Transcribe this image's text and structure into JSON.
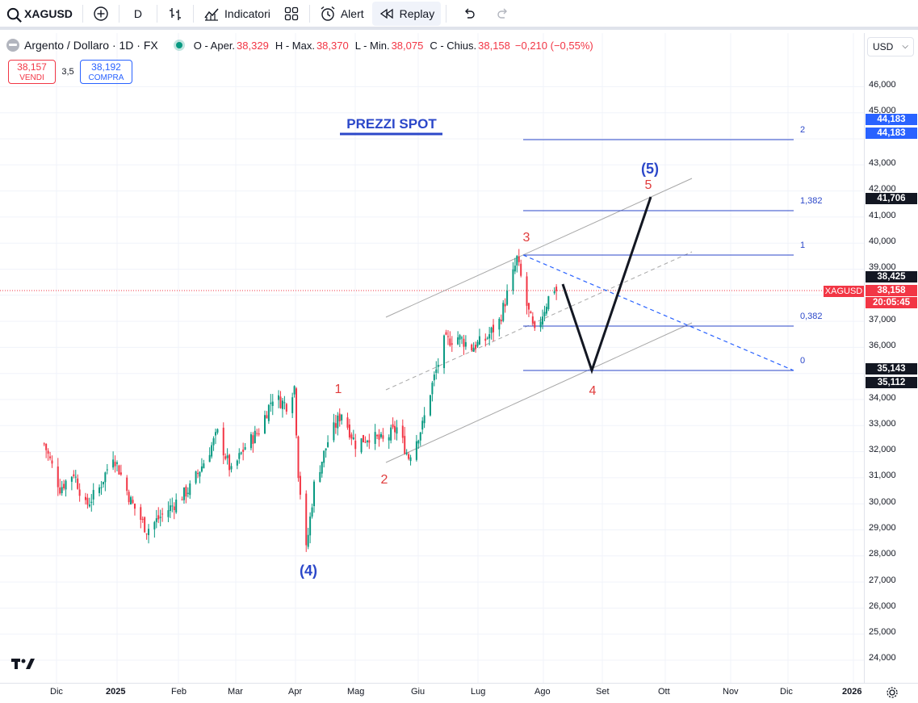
{
  "toolbar": {
    "symbol": "XAGUSD",
    "interval": "D",
    "indicators_label": "Indicatori",
    "alert_label": "Alert",
    "replay_label": "Replay"
  },
  "legend": {
    "title": "Argento / Dollaro · 1D · FX",
    "open_label": "O - Aper.",
    "open_value": "38,329",
    "high_label": "H - Max.",
    "high_value": "38,370",
    "low_label": "L - Min.",
    "low_value": "38,075",
    "close_label": "C - Chius.",
    "close_value": "38,158",
    "change_value": "−0,210 (−0,55%)"
  },
  "trade": {
    "sell_price": "38,157",
    "sell_label": "VENDI",
    "spread": "3,5",
    "buy_price": "38,192",
    "buy_label": "COMPRA"
  },
  "currency": "USD",
  "price_axis": {
    "ticks": [
      "46,000",
      "45,000",
      "43,000",
      "42,000",
      "41,000",
      "40,000",
      "39,000",
      "37,000",
      "36,000",
      "34,000",
      "33,000",
      "32,000",
      "31,000",
      "30,000",
      "29,000",
      "28,000",
      "27,000",
      "26,000",
      "25,000",
      "24,000"
    ],
    "tags": [
      {
        "text": "44,183",
        "color": "#2962ff"
      },
      {
        "text": "44,183",
        "color": "#2962ff"
      },
      {
        "text": "41,706",
        "color": "#131722"
      },
      {
        "text": "38,425",
        "color": "#131722"
      },
      {
        "text": "38,158",
        "color": "#f23645"
      },
      {
        "text": "20:05:45",
        "color": "#f23645"
      },
      {
        "text": "35,143",
        "color": "#131722"
      },
      {
        "text": "35,112",
        "color": "#131722"
      }
    ],
    "symbol_tag": "XAGUSD"
  },
  "time_axis": [
    "Dic",
    "2025",
    "Feb",
    "Mar",
    "Apr",
    "Mag",
    "Giu",
    "Lug",
    "Ago",
    "Set",
    "Ott",
    "Nov",
    "Dic",
    "2026"
  ],
  "annotations": {
    "title": "PREZZI SPOT",
    "wave_1": "1",
    "wave_2": "2",
    "wave_3": "3",
    "wave_4": "4",
    "wave_5": "5",
    "wave_big_4": "(4)",
    "wave_big_5": "(5)"
  },
  "fib_levels": [
    "2",
    "1,382",
    "1",
    "0,382",
    "0"
  ],
  "colors": {
    "up": "#089981",
    "down": "#f23645",
    "blue": "#2962ff",
    "wave_red": "#e03c3c",
    "wave_blue": "#2b47c9"
  },
  "chart_data": {
    "type": "candlestick",
    "title": "Argento / Dollaro · 1D · FX",
    "ylabel": "USD",
    "ylim": [
      23.3,
      47.3
    ],
    "x_ticks": [
      "Dic",
      "2025",
      "Feb",
      "Mar",
      "Apr",
      "Mag",
      "Giu",
      "Lug",
      "Ago",
      "Set",
      "Ott",
      "Nov",
      "Dic",
      "2026"
    ],
    "ohlc_last": {
      "open": 38.329,
      "high": 38.37,
      "low": 38.075,
      "close": 38.158
    },
    "close_path": [
      {
        "date": "2024-11-25",
        "close": 32.3
      },
      {
        "date": "2024-12-03",
        "close": 30.6
      },
      {
        "date": "2024-12-10",
        "close": 31.2
      },
      {
        "date": "2024-12-16",
        "close": 29.9
      },
      {
        "date": "2024-12-23",
        "close": 30.6
      },
      {
        "date": "2024-12-30",
        "close": 31.9
      },
      {
        "date": "2025-01-08",
        "close": 30.1
      },
      {
        "date": "2025-01-16",
        "close": 29.0
      },
      {
        "date": "2025-01-23",
        "close": 29.5
      },
      {
        "date": "2025-01-30",
        "close": 30.0
      },
      {
        "date": "2025-02-07",
        "close": 30.6
      },
      {
        "date": "2025-02-14",
        "close": 31.6
      },
      {
        "date": "2025-02-21",
        "close": 32.7
      },
      {
        "date": "2025-02-28",
        "close": 31.2
      },
      {
        "date": "2025-03-07",
        "close": 32.2
      },
      {
        "date": "2025-03-14",
        "close": 32.8
      },
      {
        "date": "2025-03-21",
        "close": 34.1
      },
      {
        "date": "2025-03-28",
        "close": 33.8
      },
      {
        "date": "2025-04-01",
        "close": 34.5
      },
      {
        "date": "2025-04-03",
        "close": 31.2
      },
      {
        "date": "2025-04-07",
        "close": 28.2
      },
      {
        "date": "2025-04-11",
        "close": 30.7
      },
      {
        "date": "2025-04-18",
        "close": 32.4
      },
      {
        "date": "2025-04-25",
        "close": 33.5
      },
      {
        "date": "2025-05-02",
        "close": 32.3
      },
      {
        "date": "2025-05-09",
        "close": 32.6
      },
      {
        "date": "2025-05-16",
        "close": 32.4
      },
      {
        "date": "2025-05-23",
        "close": 32.9
      },
      {
        "date": "2025-05-29",
        "close": 31.8
      },
      {
        "date": "2025-06-05",
        "close": 33.0
      },
      {
        "date": "2025-06-09",
        "close": 34.3
      },
      {
        "date": "2025-06-16",
        "close": 36.2
      },
      {
        "date": "2025-06-23",
        "close": 36.4
      },
      {
        "date": "2025-06-30",
        "close": 36.0
      },
      {
        "date": "2025-07-07",
        "close": 36.3
      },
      {
        "date": "2025-07-14",
        "close": 37.0
      },
      {
        "date": "2025-07-21",
        "close": 38.8
      },
      {
        "date": "2025-07-23",
        "close": 39.4
      },
      {
        "date": "2025-07-28",
        "close": 37.6
      },
      {
        "date": "2025-08-01",
        "close": 36.5
      },
      {
        "date": "2025-08-08",
        "close": 37.9
      },
      {
        "date": "2025-08-12",
        "close": 38.4
      }
    ],
    "projection": [
      {
        "label": "start",
        "value": 38.4
      },
      {
        "label": "4",
        "value": 35.1
      },
      {
        "label": "5",
        "value": 41.7
      }
    ],
    "fibonacci": [
      {
        "ratio": "2",
        "price": 44.18
      },
      {
        "ratio": "1,382",
        "price": 41.21
      },
      {
        "ratio": "1",
        "price": 39.52
      },
      {
        "ratio": "0,382",
        "price": 36.83
      },
      {
        "ratio": "0",
        "price": 35.14
      }
    ],
    "current_price": 38.158
  }
}
